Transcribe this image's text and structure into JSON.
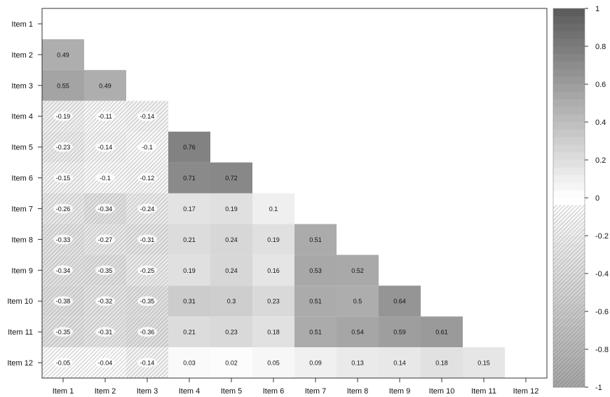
{
  "chart_data": {
    "type": "heatmap",
    "title": "",
    "xlabel": "",
    "ylabel": "",
    "labels": [
      "Item 1",
      "Item 2",
      "Item 3",
      "Item 4",
      "Item 5",
      "Item 6",
      "Item 7",
      "Item 8",
      "Item 9",
      "Item 10",
      "Item 11",
      "Item 12"
    ],
    "matrix": [
      [],
      [
        0.49
      ],
      [
        0.55,
        0.49
      ],
      [
        -0.19,
        -0.11,
        -0.14
      ],
      [
        -0.23,
        -0.14,
        -0.1,
        0.76
      ],
      [
        -0.15,
        -0.1,
        -0.12,
        0.71,
        0.72
      ],
      [
        -0.26,
        -0.34,
        -0.24,
        0.17,
        0.19,
        0.1
      ],
      [
        -0.33,
        -0.27,
        -0.31,
        0.21,
        0.24,
        0.19,
        0.51
      ],
      [
        -0.34,
        -0.35,
        -0.25,
        0.19,
        0.24,
        0.16,
        0.53,
        0.52
      ],
      [
        -0.38,
        -0.32,
        -0.35,
        0.31,
        0.3,
        0.23,
        0.51,
        0.5,
        0.64
      ],
      [
        -0.35,
        -0.31,
        -0.36,
        0.21,
        0.23,
        0.18,
        0.51,
        0.54,
        0.59,
        0.61
      ],
      [
        -0.05,
        -0.04,
        -0.14,
        0.03,
        0.02,
        0.05,
        0.09,
        0.13,
        0.14,
        0.18,
        0.15
      ]
    ],
    "colorbar": {
      "range": [
        -1,
        1
      ],
      "ticks": [
        "1",
        "0.8",
        "0.6",
        "0.4",
        "0.2",
        "0",
        "-0.2",
        "-0.4",
        "-0.6",
        "-0.8",
        "-1"
      ],
      "tick_values": [
        1,
        0.8,
        0.6,
        0.4,
        0.2,
        0,
        -0.2,
        -0.4,
        -0.6,
        -0.8,
        -1
      ],
      "positive_style": "solid grayscale",
      "negative_style": "hatched grayscale"
    },
    "legend_placement": "right",
    "grid": false,
    "colors": {
      "positive_max": "#5a5a5a",
      "negative_max": "#5a5a5a",
      "low": "#ffffff",
      "frame": "#333333"
    }
  }
}
